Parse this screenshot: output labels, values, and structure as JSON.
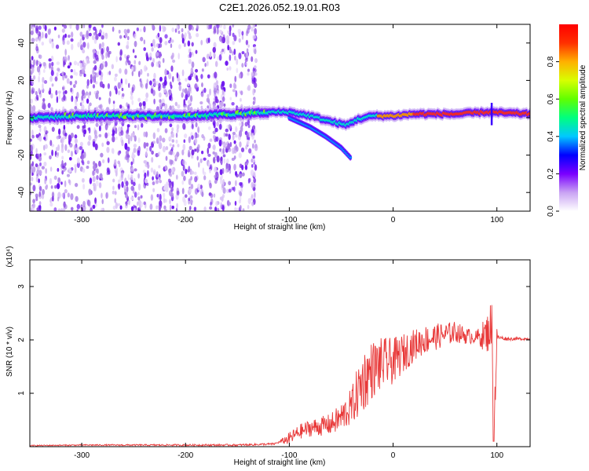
{
  "title": "C2E1.2026.052.19.01.R03",
  "chart_data": [
    {
      "type": "heatmap",
      "xlabel": "Height of straight line (km)",
      "ylabel": "Frequency (Hz)",
      "xlim": [
        -350,
        132
      ],
      "ylim": [
        -50,
        50
      ],
      "xticks": [
        -300,
        -200,
        -100,
        0,
        100
      ],
      "yticks": [
        -40,
        -20,
        0,
        20,
        40
      ],
      "colorbar": {
        "label": "Normalized spectral amplitude",
        "range": [
          0.0,
          1.0
        ],
        "ticks": [
          "0.0",
          "0.2",
          "0.4",
          "0.6",
          "0.8"
        ],
        "tick_values": [
          0.0,
          0.2,
          0.4,
          0.6,
          0.8
        ],
        "colors": [
          "#ffffff",
          "#c9a3f3",
          "#7a00ff",
          "#0000ff",
          "#00c8ff",
          "#00ff7f",
          "#60ff00",
          "#d8ff00",
          "#ffb000",
          "#ff3000",
          "#ff0000"
        ]
      },
      "main_ridge": [
        {
          "x": -350,
          "y": 0
        },
        {
          "x": -300,
          "y": 1
        },
        {
          "x": -250,
          "y": 1
        },
        {
          "x": -200,
          "y": 1
        },
        {
          "x": -150,
          "y": 2
        },
        {
          "x": -120,
          "y": 3
        },
        {
          "x": -100,
          "y": 3
        },
        {
          "x": -80,
          "y": 1
        },
        {
          "x": -60,
          "y": -2
        },
        {
          "x": -45,
          "y": -4
        },
        {
          "x": -35,
          "y": -1
        },
        {
          "x": -20,
          "y": 1
        },
        {
          "x": 0,
          "y": 1
        },
        {
          "x": 20,
          "y": 2
        },
        {
          "x": 60,
          "y": 2
        },
        {
          "x": 90,
          "y": 3
        },
        {
          "x": 132,
          "y": 2
        }
      ],
      "secondary_branch": [
        {
          "x": -100,
          "y": 0
        },
        {
          "x": -80,
          "y": -5
        },
        {
          "x": -65,
          "y": -10
        },
        {
          "x": -50,
          "y": -16
        },
        {
          "x": -40,
          "y": -22
        }
      ],
      "noise_region": {
        "x_from": -350,
        "x_to": -130
      }
    },
    {
      "type": "line",
      "xlabel": "Height of straight line (km)",
      "ylabel": "SNR (10 * v/v)",
      "yscale_label": "(x10⁴)",
      "xlim": [
        -350,
        132
      ],
      "ylim": [
        0,
        3.5
      ],
      "xticks": [
        -300,
        -200,
        -100,
        0,
        100
      ],
      "yticks": [
        1,
        2,
        3
      ],
      "series": [
        {
          "name": "SNR",
          "color": "#e83a3a",
          "points": [
            {
              "x": -350,
              "y": 0.02
            },
            {
              "x": -300,
              "y": 0.03
            },
            {
              "x": -250,
              "y": 0.03
            },
            {
              "x": -200,
              "y": 0.03
            },
            {
              "x": -150,
              "y": 0.03
            },
            {
              "x": -115,
              "y": 0.05
            },
            {
              "x": -100,
              "y": 0.15
            },
            {
              "x": -90,
              "y": 0.28
            },
            {
              "x": -80,
              "y": 0.35
            },
            {
              "x": -70,
              "y": 0.38
            },
            {
              "x": -60,
              "y": 0.42
            },
            {
              "x": -50,
              "y": 0.55
            },
            {
              "x": -40,
              "y": 0.75
            },
            {
              "x": -30,
              "y": 1.2
            },
            {
              "x": -20,
              "y": 1.45
            },
            {
              "x": -10,
              "y": 1.55
            },
            {
              "x": 0,
              "y": 1.6
            },
            {
              "x": 10,
              "y": 1.75
            },
            {
              "x": 20,
              "y": 1.9
            },
            {
              "x": 30,
              "y": 2.0
            },
            {
              "x": 40,
              "y": 2.05
            },
            {
              "x": 50,
              "y": 2.1
            },
            {
              "x": 60,
              "y": 2.15
            },
            {
              "x": 70,
              "y": 2.08
            },
            {
              "x": 80,
              "y": 2.05
            },
            {
              "x": 90,
              "y": 2.1
            },
            {
              "x": 95,
              "y": 2.3
            },
            {
              "x": 97,
              "y": 0.1
            },
            {
              "x": 100,
              "y": 2.05
            },
            {
              "x": 110,
              "y": 2.02
            },
            {
              "x": 120,
              "y": 2.02
            },
            {
              "x": 132,
              "y": 2.02
            }
          ],
          "noise_amplitude": [
            {
              "x": -350,
              "a": 0.01
            },
            {
              "x": -110,
              "a": 0.02
            },
            {
              "x": -100,
              "a": 0.12
            },
            {
              "x": -60,
              "a": 0.2
            },
            {
              "x": -40,
              "a": 0.35
            },
            {
              "x": -30,
              "a": 0.6
            },
            {
              "x": -10,
              "a": 0.5
            },
            {
              "x": 20,
              "a": 0.3
            },
            {
              "x": 60,
              "a": 0.2
            },
            {
              "x": 80,
              "a": 0.12
            },
            {
              "x": 90,
              "a": 0.35
            },
            {
              "x": 98,
              "a": 0.6
            },
            {
              "x": 101,
              "a": 0.04
            },
            {
              "x": 132,
              "a": 0.02
            }
          ]
        }
      ]
    }
  ]
}
